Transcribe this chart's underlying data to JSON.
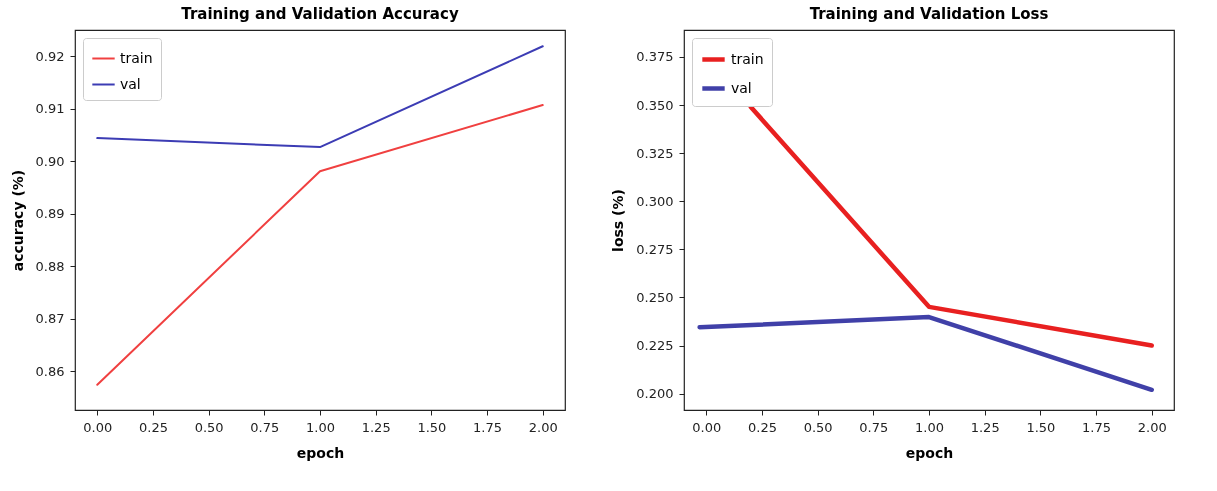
{
  "chart_data": [
    {
      "type": "line",
      "title": "Training and Validation Accuracy",
      "xlabel": "epoch",
      "ylabel": "accuracy (%)",
      "x": [
        0,
        1,
        2
      ],
      "series": [
        {
          "name": "train",
          "color": "#f04040",
          "values": [
            0.8574,
            0.8981,
            0.9107
          ]
        },
        {
          "name": "val",
          "color": "#3c3cb4",
          "values": [
            0.9044,
            0.9027,
            0.9219
          ]
        }
      ],
      "xlim": [
        -0.1,
        2.1
      ],
      "ylim": [
        0.8526,
        0.925
      ],
      "xticks": [
        {
          "value": 0,
          "label": "0.00"
        },
        {
          "value": 0.25,
          "label": "0.25"
        },
        {
          "value": 0.5,
          "label": "0.50"
        },
        {
          "value": 0.75,
          "label": "0.75"
        },
        {
          "value": 1,
          "label": "1.00"
        },
        {
          "value": 1.25,
          "label": "1.25"
        },
        {
          "value": 1.5,
          "label": "1.50"
        },
        {
          "value": 1.75,
          "label": "1.75"
        },
        {
          "value": 2,
          "label": "2.00"
        }
      ],
      "yticks": [
        {
          "value": 0.86,
          "label": "0.86"
        },
        {
          "value": 0.87,
          "label": "0.87"
        },
        {
          "value": 0.88,
          "label": "0.88"
        },
        {
          "value": 0.89,
          "label": "0.89"
        },
        {
          "value": 0.9,
          "label": "0.90"
        },
        {
          "value": 0.91,
          "label": "0.91"
        },
        {
          "value": 0.92,
          "label": "0.92"
        }
      ],
      "grid": false,
      "legend": "top left",
      "marker": "none",
      "line_style": "solid"
    },
    {
      "type": "line",
      "title": "Training and Validation Loss",
      "xlabel": "epoch",
      "ylabel": "loss (%)",
      "series": [
        {
          "name": "train",
          "color": "#e82020",
          "x": [
            0.2,
            1,
            2
          ],
          "values": [
            0.349,
            0.2451,
            0.225
          ]
        },
        {
          "name": "val",
          "color": "#4040a8",
          "x": [
            -0.03,
            1,
            2
          ],
          "values": [
            0.2345,
            0.2398,
            0.202
          ]
        }
      ],
      "xlim": [
        -0.1,
        2.1
      ],
      "ylim": [
        0.1915,
        0.389
      ],
      "xticks": [
        {
          "value": 0,
          "label": "0.00"
        },
        {
          "value": 0.25,
          "label": "0.25"
        },
        {
          "value": 0.5,
          "label": "0.50"
        },
        {
          "value": 0.75,
          "label": "0.75"
        },
        {
          "value": 1,
          "label": "1.00"
        },
        {
          "value": 1.25,
          "label": "1.25"
        },
        {
          "value": 1.5,
          "label": "1.50"
        },
        {
          "value": 1.75,
          "label": "1.75"
        },
        {
          "value": 2,
          "label": "2.00"
        }
      ],
      "yticks": [
        {
          "value": 0.2,
          "label": "0.200"
        },
        {
          "value": 0.225,
          "label": "0.225"
        },
        {
          "value": 0.25,
          "label": "0.250"
        },
        {
          "value": 0.275,
          "label": "0.275"
        },
        {
          "value": 0.3,
          "label": "0.300"
        },
        {
          "value": 0.325,
          "label": "0.325"
        },
        {
          "value": 0.35,
          "label": "0.350"
        },
        {
          "value": 0.375,
          "label": "0.375"
        }
      ],
      "grid": false,
      "legend": "top left",
      "marker": "none",
      "line_style": "solid"
    }
  ]
}
